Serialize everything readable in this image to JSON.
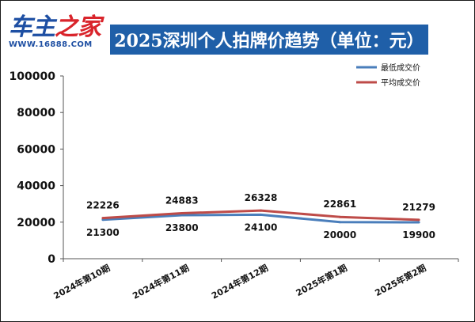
{
  "brand": {
    "logo_text_a": "车主",
    "logo_text_b": "之家",
    "logo_url": "WWW.16888.COM"
  },
  "title": "2025深圳个人拍牌价趋势（单位：元）",
  "colors": {
    "banner": "#1f5fa8",
    "series_min": "#4a7ebb",
    "series_avg": "#be4b48"
  },
  "chart_data": {
    "type": "line",
    "title": "2025深圳个人拍牌价趋势（单位：元）",
    "categories": [
      "2024年第10期",
      "2024年第11期",
      "2024年第12期",
      "2025年第1期",
      "2025年第2期"
    ],
    "series": [
      {
        "name": "最低成交价",
        "values": [
          21300,
          23800,
          24100,
          20000,
          19900
        ],
        "color": "#4a7ebb"
      },
      {
        "name": "平均成交价",
        "values": [
          22226,
          24883,
          26328,
          22861,
          21279
        ],
        "color": "#be4b48"
      }
    ],
    "ylim": [
      0,
      100000
    ],
    "yticks": [
      "0",
      "20000",
      "40000",
      "60000",
      "80000",
      "100000"
    ],
    "grid": false,
    "legend_position": "top-right"
  }
}
